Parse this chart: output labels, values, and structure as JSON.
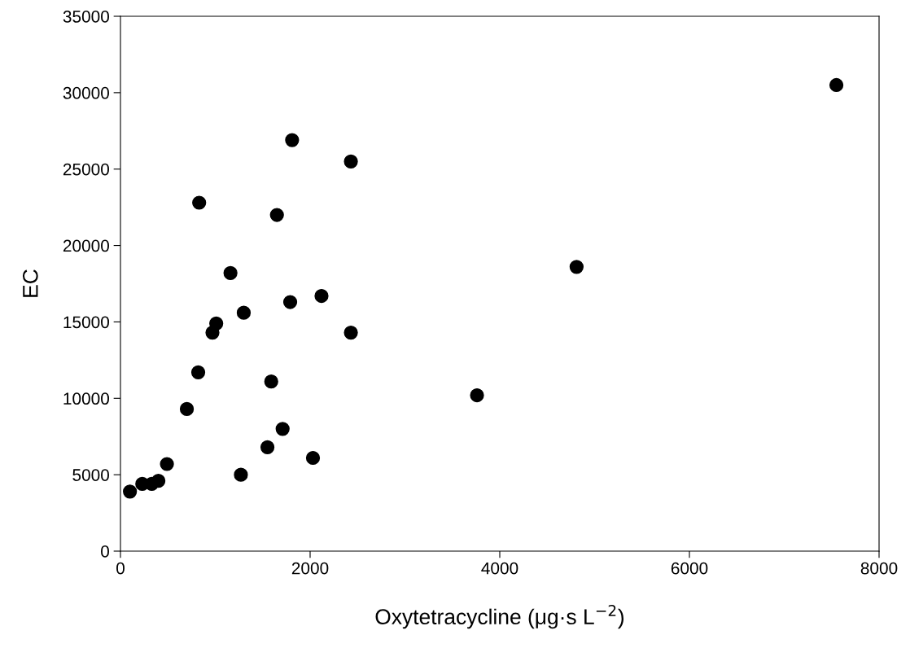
{
  "chart_data": {
    "type": "scatter",
    "xlabel": "Oxytetracycline (μg·s L$^{−2}$)",
    "ylabel": "EC",
    "xlim": [
      0,
      8000
    ],
    "xticks": [
      0,
      2000,
      4000,
      6000,
      8000
    ],
    "ylim": [
      0,
      35000
    ],
    "yticks": [
      0,
      5000,
      10000,
      15000,
      20000,
      25000,
      30000,
      35000
    ],
    "grid": false,
    "marker": "circle",
    "series": [
      {
        "color": "#000000",
        "x": [
          100,
          230,
          330,
          400,
          490,
          700,
          820,
          830,
          970,
          1010,
          1160,
          1270,
          1300,
          1550,
          1590,
          1650,
          1710,
          1790,
          1810,
          2030,
          2120,
          2430,
          2430,
          3760,
          4810,
          7550
        ],
        "values": [
          3900,
          4400,
          4400,
          4600,
          5700,
          9300,
          11700,
          22800,
          14300,
          14900,
          18200,
          5000,
          15600,
          6800,
          11100,
          22000,
          8000,
          16300,
          26900,
          6100,
          16700,
          14300,
          25500,
          10200,
          18600,
          30500
        ]
      }
    ]
  }
}
